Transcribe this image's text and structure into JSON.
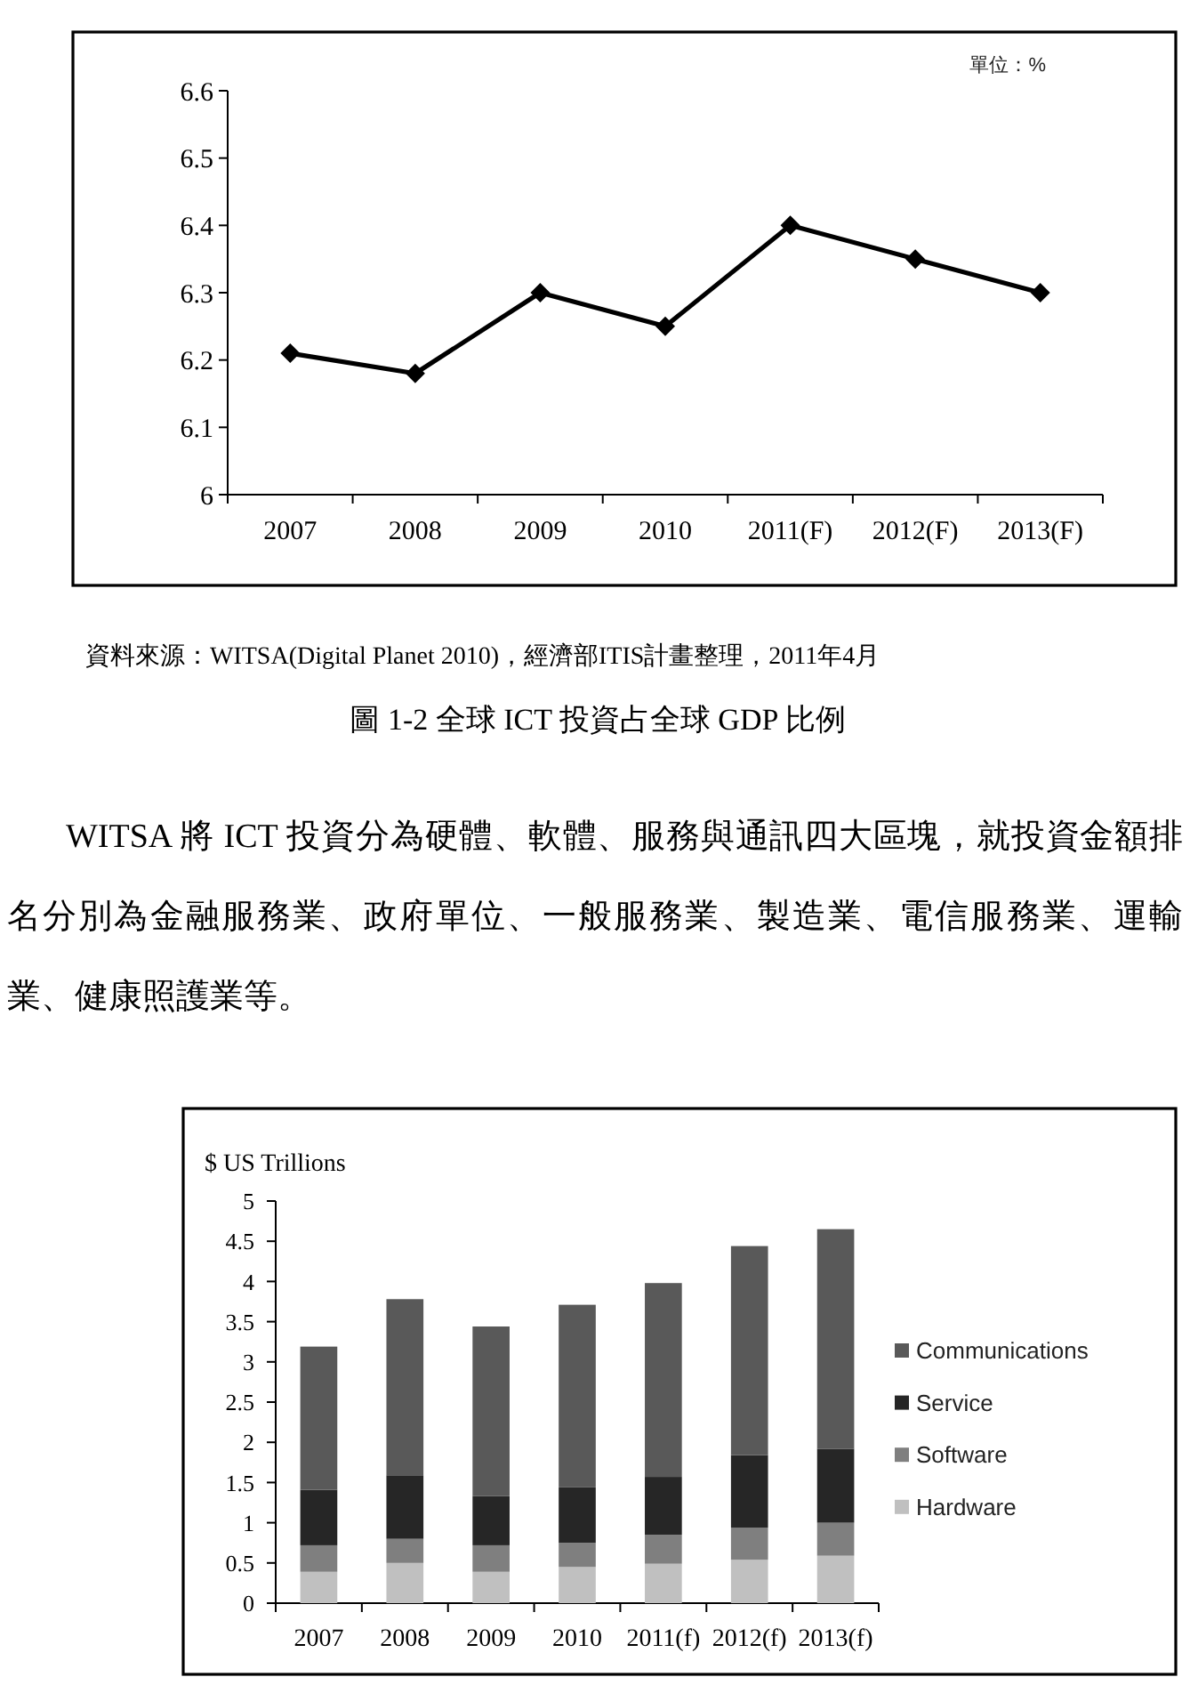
{
  "chart_data": [
    {
      "type": "line",
      "title": "圖 1-2 全球 ICT 投資占全球 GDP 比例",
      "categories": [
        "2007",
        "2008",
        "2009",
        "2010",
        "2011(F)",
        "2012(F)",
        "2013(F)"
      ],
      "values": [
        6.21,
        6.18,
        6.3,
        6.25,
        6.4,
        6.35,
        6.3
      ],
      "color": "#000000",
      "marker": "diamond",
      "ylim": [
        6,
        6.6
      ],
      "yticks": [
        6,
        6.1,
        6.2,
        6.3,
        6.4,
        6.5,
        6.6
      ],
      "annotations": [
        "單位：%",
        "資料來源：WITSA(Digital Planet 2010)，經濟部ITIS計畫整理，2011年4月"
      ]
    },
    {
      "type": "bar",
      "stacked": true,
      "ylabel": "$ US Trillions",
      "categories": [
        "2007",
        "2008",
        "2009",
        "2010",
        "2011(f)",
        "2012(f)",
        "2013(f)"
      ],
      "series": [
        {
          "name": "Hardware",
          "color": "#c0c0c0",
          "values": [
            0.39,
            0.5,
            0.39,
            0.45,
            0.49,
            0.54,
            0.59
          ]
        },
        {
          "name": "Software",
          "color": "#7f7f7f",
          "values": [
            0.33,
            0.3,
            0.33,
            0.3,
            0.36,
            0.4,
            0.41
          ]
        },
        {
          "name": "Service",
          "color": "#262626",
          "values": [
            0.69,
            0.79,
            0.61,
            0.69,
            0.72,
            0.9,
            0.92
          ]
        },
        {
          "name": "Communications",
          "color": "#595959",
          "values": [
            1.78,
            2.19,
            2.11,
            2.27,
            2.41,
            2.6,
            2.73
          ]
        }
      ],
      "ylim": [
        0,
        5
      ],
      "yticks": [
        0,
        0.5,
        1,
        1.5,
        2,
        2.5,
        3,
        3.5,
        4,
        4.5,
        5
      ],
      "legend": "right",
      "annotations": [
        "WITSA 將 ICT 投資分為硬體、軟體、服務與通訊四大區塊，就投資金額排名分別為金融服務業、政府單位、一般服務業、製造業、電信服務業、運輸業、健康照護業等。"
      ]
    }
  ]
}
